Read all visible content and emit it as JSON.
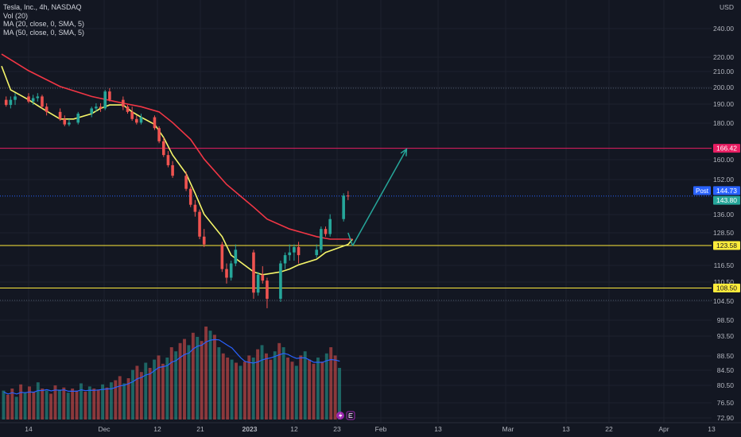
{
  "header": {
    "symbol": "Tesla, Inc., 4h, NASDAQ",
    "indicators": [
      "Vol (20)",
      "MA (20, close, 0, SMA, 5)",
      "MA (50, close, 0, SMA, 5)"
    ]
  },
  "currency": "USD",
  "colors": {
    "background": "#131722",
    "up": "#26a69a",
    "down": "#ef5350",
    "ma20": "#f5f569",
    "ma50": "#f23645",
    "resistance": "#e91e63",
    "support": "#ffeb3b",
    "projection": "#26a69a",
    "price_line": "#2962ff"
  },
  "chart_data": {
    "type": "candlestick",
    "price_axis": {
      "labels": [
        "240.00",
        "220.00",
        "210.00",
        "200.00",
        "190.00",
        "180.00",
        "160.00",
        "152.00",
        "136.00",
        "128.50",
        "116.50",
        "110.50",
        "104.50",
        "98.50",
        "93.50",
        "88.50",
        "84.50",
        "80.50",
        "76.50",
        "72.90"
      ],
      "log_scale": true
    },
    "time_axis": {
      "labels": [
        "14",
        "Dec",
        "12",
        "21",
        "2023",
        "12",
        "23",
        "Feb",
        "13",
        "Mar",
        "13",
        "22",
        "Apr",
        "13"
      ]
    },
    "price_tags": [
      {
        "text": "166.42",
        "kind": "resistance"
      },
      {
        "text": "144.73",
        "kind": "post"
      },
      {
        "text": "143.80",
        "kind": "last"
      },
      {
        "text": "123.58",
        "kind": "support"
      },
      {
        "text": "108.50",
        "kind": "support"
      }
    ],
    "post_label": "Post",
    "horizontal_levels": [
      166.42,
      123.58,
      108.5
    ],
    "dotted_levels": [
      200.0,
      104.5
    ],
    "projection_arrow": {
      "from": {
        "date": "2023-01-25",
        "price": 123.5
      },
      "to": {
        "date": "2023-02-06",
        "price": 166.0
      }
    },
    "series": [
      {
        "name": "MA (20, close, 0, SMA, 5)",
        "points": [
          [
            "2022-11-08",
            214
          ],
          [
            "2022-11-10",
            199
          ],
          [
            "2022-11-14",
            193
          ],
          [
            "2022-11-17",
            188
          ],
          [
            "2022-11-21",
            182
          ],
          [
            "2022-11-24",
            182
          ],
          [
            "2022-11-28",
            185
          ],
          [
            "2022-11-30",
            188
          ],
          [
            "2022-12-02",
            190
          ],
          [
            "2022-12-05",
            190
          ],
          [
            "2022-12-07",
            186
          ],
          [
            "2022-12-09",
            183
          ],
          [
            "2022-12-12",
            179
          ],
          [
            "2022-12-14",
            172
          ],
          [
            "2022-12-16",
            163
          ],
          [
            "2022-12-19",
            154
          ],
          [
            "2022-12-21",
            145
          ],
          [
            "2022-12-23",
            136
          ],
          [
            "2022-12-27",
            127
          ],
          [
            "2022-12-29",
            120
          ],
          [
            "2023-01-03",
            114
          ],
          [
            "2023-01-05",
            113
          ],
          [
            "2023-01-09",
            114
          ],
          [
            "2023-01-11",
            115
          ],
          [
            "2023-01-13",
            116.5
          ],
          [
            "2023-01-17",
            118.5
          ],
          [
            "2023-01-19",
            121
          ],
          [
            "2023-01-24",
            124
          ],
          [
            "2023-01-25",
            126
          ]
        ]
      },
      {
        "name": "MA (50, close, 0, SMA, 5)",
        "points": [
          [
            "2022-11-08",
            222
          ],
          [
            "2022-11-14",
            211
          ],
          [
            "2022-11-21",
            201
          ],
          [
            "2022-11-28",
            195
          ],
          [
            "2022-12-05",
            191
          ],
          [
            "2022-12-09",
            189
          ],
          [
            "2022-12-13",
            186
          ],
          [
            "2022-12-16",
            180
          ],
          [
            "2022-12-20",
            171
          ],
          [
            "2022-12-23",
            161
          ],
          [
            "2022-12-28",
            149
          ],
          [
            "2023-01-03",
            139
          ],
          [
            "2023-01-06",
            134
          ],
          [
            "2023-01-11",
            130
          ],
          [
            "2023-01-17",
            127
          ],
          [
            "2023-01-20",
            126
          ],
          [
            "2023-01-25",
            126
          ]
        ]
      }
    ],
    "candles": [
      [
        "2022-11-09",
        193,
        195,
        189,
        190
      ],
      [
        "2022-11-10",
        190,
        195,
        188,
        193
      ],
      [
        "2022-11-11",
        193,
        197,
        190,
        195
      ],
      [
        "2022-11-14",
        195,
        197,
        191,
        192
      ],
      [
        "2022-11-15",
        192,
        196,
        190,
        194
      ],
      [
        "2022-11-16",
        194,
        197,
        192,
        195
      ],
      [
        "2022-11-17",
        195,
        196,
        188,
        189
      ],
      [
        "2022-11-18",
        189,
        191,
        184,
        186
      ],
      [
        "2022-11-21",
        186,
        188,
        181,
        182
      ],
      [
        "2022-11-22",
        182,
        184,
        178,
        179
      ],
      [
        "2022-11-23",
        179,
        182,
        178,
        180
      ],
      [
        "2022-11-25",
        180,
        186,
        179,
        185
      ],
      [
        "2022-11-28",
        185,
        189,
        183,
        188
      ],
      [
        "2022-11-29",
        188,
        191,
        186,
        189
      ],
      [
        "2022-11-30",
        189,
        191,
        186,
        188
      ],
      [
        "2022-12-01",
        188,
        199,
        187,
        198
      ],
      [
        "2022-12-02",
        198,
        200,
        192,
        193
      ],
      [
        "2022-12-05",
        193,
        195,
        187,
        189
      ],
      [
        "2022-12-06",
        189,
        190,
        185,
        186
      ],
      [
        "2022-12-07",
        186,
        189,
        181,
        182
      ],
      [
        "2022-12-08",
        182,
        184,
        179,
        180
      ],
      [
        "2022-12-09",
        180,
        185,
        179,
        183
      ],
      [
        "2022-12-12",
        183,
        184,
        176,
        177
      ],
      [
        "2022-12-13",
        177,
        178,
        169,
        170
      ],
      [
        "2022-12-14",
        170,
        172,
        162,
        163
      ],
      [
        "2022-12-15",
        163,
        165,
        157,
        158
      ],
      [
        "2022-12-16",
        158,
        160,
        152,
        153
      ],
      [
        "2022-12-19",
        153,
        155,
        146,
        147
      ],
      [
        "2022-12-20",
        147,
        148,
        139,
        140
      ],
      [
        "2022-12-21",
        140,
        142,
        135,
        137
      ],
      [
        "2022-12-22",
        137,
        138,
        126,
        127
      ],
      [
        "2022-12-23",
        127,
        130,
        123,
        124
      ],
      [
        "2022-12-27",
        124,
        125,
        114,
        115
      ],
      [
        "2022-12-28",
        115,
        117,
        110,
        112
      ],
      [
        "2022-12-29",
        112,
        118,
        111,
        117
      ],
      [
        "2022-12-30",
        117,
        124,
        116,
        122
      ],
      [
        "2023-01-03",
        121,
        122,
        105,
        107
      ],
      [
        "2023-01-04",
        107,
        114,
        106,
        113
      ],
      [
        "2023-01-05",
        113,
        116,
        110,
        111
      ],
      [
        "2023-01-06",
        111,
        112,
        102,
        105
      ],
      [
        "2023-01-09",
        105,
        118,
        104,
        117
      ],
      [
        "2023-01-10",
        117,
        121,
        115,
        120
      ],
      [
        "2023-01-11",
        120,
        124,
        118,
        121
      ],
      [
        "2023-01-12",
        121,
        124,
        118,
        123
      ],
      [
        "2023-01-13",
        123,
        125,
        117,
        120
      ],
      [
        "2023-01-17",
        120,
        124,
        119,
        122
      ],
      [
        "2023-01-18",
        122,
        131,
        121,
        130
      ],
      [
        "2023-01-19",
        130,
        131,
        127,
        128
      ],
      [
        "2023-01-20",
        128,
        136,
        127,
        134
      ],
      [
        "2023-01-23",
        134,
        145,
        133,
        144
      ],
      [
        "2023-01-24",
        144,
        146,
        142,
        143.8
      ]
    ],
    "volume_pattern": [
      0.28,
      0.24,
      0.3,
      0.22,
      0.34,
      0.26,
      0.32,
      0.27,
      0.36,
      0.3,
      0.28,
      0.25,
      0.33,
      0.29,
      0.31,
      0.26,
      0.3,
      0.28,
      0.35,
      0.27,
      0.32,
      0.3,
      0.29,
      0.34,
      0.31,
      0.36,
      0.38,
      0.42,
      0.35,
      0.4,
      0.48,
      0.52,
      0.46,
      0.55,
      0.5,
      0.58,
      0.62,
      0.54,
      0.6,
      0.7,
      0.66,
      0.74,
      0.78,
      0.72,
      0.84,
      0.8,
      0.76,
      0.9,
      0.86,
      0.82,
      0.7,
      0.64,
      0.6,
      0.58,
      0.55,
      0.52,
      0.56,
      0.62,
      0.6,
      0.68,
      0.72,
      0.64,
      0.58,
      0.66,
      0.74,
      0.7,
      0.6,
      0.56,
      0.52,
      0.62,
      0.66,
      0.58,
      0.54,
      0.6,
      0.56,
      0.64,
      0.7,
      0.62,
      0.5
    ]
  }
}
